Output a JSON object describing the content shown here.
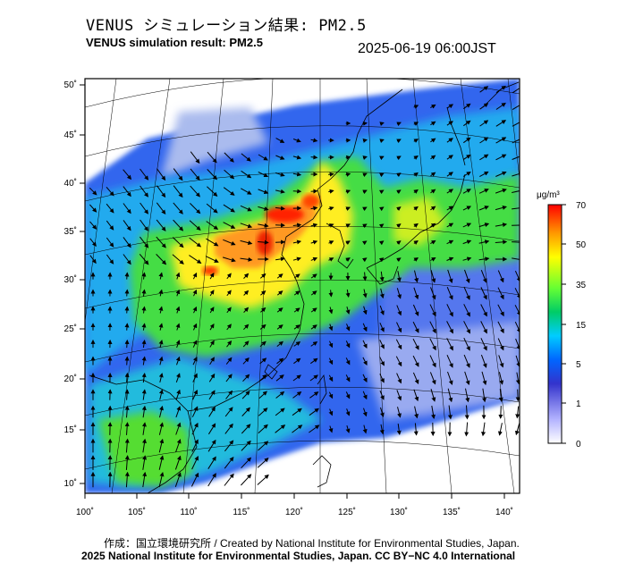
{
  "header": {
    "title_jp": "VENUS シミュレーション結果: PM2.5",
    "title_en": "VENUS simulation result: PM2.5",
    "timestamp": "2025-06-19 06:00JST"
  },
  "map": {
    "lon_ticks": [
      "100˚",
      "105˚",
      "110˚",
      "115˚",
      "120˚",
      "125˚",
      "130˚",
      "135˚",
      "140˚"
    ],
    "lat_ticks": [
      "50˚",
      "45˚",
      "40˚",
      "35˚",
      "30˚",
      "25˚",
      "20˚",
      "15˚",
      "10˚"
    ],
    "lon_range": [
      100,
      141
    ],
    "lat_range": [
      9,
      51
    ]
  },
  "colorbar": {
    "unit": "μg/m³",
    "labels": [
      "70",
      "50",
      "35",
      "15",
      "5",
      "1",
      "0"
    ],
    "colors": [
      "#ff0000",
      "#ff9900",
      "#ffff00",
      "#66ff33",
      "#00cc66",
      "#00ccff",
      "#0066ff",
      "#3333cc",
      "#ccccff",
      "#ffffff"
    ]
  },
  "footer": {
    "credit_line1": "作成：国立環境研究所 / Created by National Institute for Environmental Studies, Japan.",
    "credit_line2": "2025 National Institute for Environmental Studies, Japan. CC BY−NC 4.0 International"
  }
}
